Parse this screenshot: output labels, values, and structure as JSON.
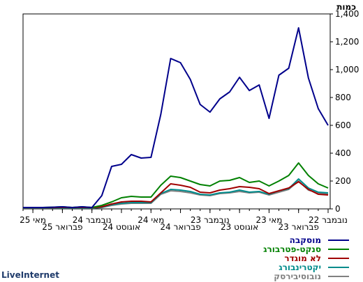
{
  "brand": "LiveInternet",
  "chart_data": {
    "type": "line",
    "title": "",
    "ylabel": "כמות",
    "ylim": [
      0,
      1400
    ],
    "y_ticks": [
      0,
      200,
      400,
      600,
      800,
      1000,
      1200,
      1400
    ],
    "y_tick_labels": [
      "0",
      "200",
      "400",
      "600",
      "800",
      "1,000",
      "1,200",
      "1,400"
    ],
    "x_direction": "right-to-left",
    "x_tick_labels": [
      {
        "label": "נובמבר 22",
        "index": 0,
        "row": 1
      },
      {
        "label": "פברואר 23",
        "index": 3,
        "row": 2
      },
      {
        "label": "מאי 23",
        "index": 6,
        "row": 1
      },
      {
        "label": "אוגוסט 23",
        "index": 9,
        "row": 2
      },
      {
        "label": "נובמבר 23",
        "index": 12,
        "row": 1
      },
      {
        "label": "פברואר 24",
        "index": 15,
        "row": 2
      },
      {
        "label": "מאי 24",
        "index": 18,
        "row": 1
      },
      {
        "label": "אוגוסט 24",
        "index": 21,
        "row": 2
      },
      {
        "label": "נובמבר 24",
        "index": 24,
        "row": 1
      },
      {
        "label": "פברואר 25",
        "index": 27,
        "row": 2
      },
      {
        "label": "מאי 25",
        "index": 30,
        "row": 1
      }
    ],
    "grid": false,
    "legend_position": "bottom-right",
    "series": [
      {
        "name": "מוסקבה",
        "color": "#00008b",
        "values": [
          600,
          720,
          940,
          1300,
          1010,
          960,
          650,
          890,
          850,
          945,
          840,
          790,
          695,
          750,
          930,
          1050,
          1080,
          680,
          370,
          365,
          390,
          320,
          305,
          95,
          10,
          15,
          10,
          15,
          12,
          10,
          10,
          10
        ]
      },
      {
        "name": "סנקט-פטרבורג",
        "color": "#008000",
        "values": [
          150,
          180,
          240,
          330,
          240,
          200,
          165,
          200,
          190,
          225,
          205,
          200,
          165,
          175,
          200,
          225,
          235,
          170,
          85,
          85,
          90,
          80,
          50,
          25,
          10,
          15,
          10,
          15,
          12,
          10,
          10,
          10
        ]
      },
      {
        "name": "לא מוגדר",
        "color": "#a00000",
        "values": [
          100,
          105,
          140,
          195,
          150,
          130,
          110,
          145,
          155,
          160,
          145,
          135,
          115,
          120,
          155,
          170,
          180,
          115,
          50,
          55,
          55,
          50,
          35,
          15,
          8,
          10,
          8,
          10,
          8,
          8,
          8,
          8
        ]
      },
      {
        "name": "יקטרינבורג",
        "color": "#008b8b",
        "values": [
          115,
          120,
          150,
          215,
          145,
          130,
          105,
          125,
          120,
          135,
          120,
          115,
          100,
          105,
          125,
          135,
          140,
          110,
          45,
          45,
          45,
          40,
          30,
          12,
          5,
          5,
          5,
          5,
          5,
          5,
          5,
          5
        ]
      },
      {
        "name": "נובוסיבירסק",
        "color": "#808080",
        "values": [
          105,
          115,
          135,
          200,
          140,
          120,
          100,
          120,
          115,
          125,
          115,
          110,
          95,
          100,
          115,
          125,
          130,
          105,
          40,
          40,
          40,
          35,
          25,
          10,
          5,
          5,
          5,
          5,
          5,
          5,
          5,
          5
        ]
      }
    ]
  }
}
